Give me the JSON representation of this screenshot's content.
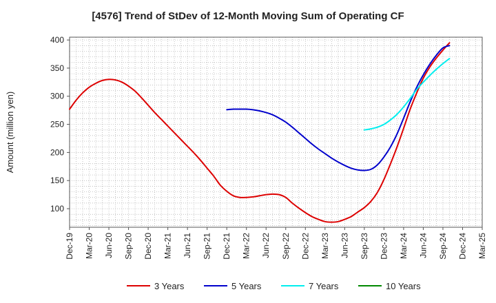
{
  "chart_data": {
    "type": "line",
    "title": "[4576]  Trend of StDev of 12-Month Moving Sum of Operating CF",
    "xlabel": "",
    "ylabel": "Amount (million yen)",
    "ylim": [
      67,
      405
    ],
    "xlim": [
      "2019-12",
      "2025-03"
    ],
    "yticks": [
      100,
      150,
      200,
      250,
      300,
      350,
      400
    ],
    "xticks": [
      "Dec-19",
      "Mar-20",
      "Jun-20",
      "Sep-20",
      "Dec-20",
      "Mar-21",
      "Jun-21",
      "Sep-21",
      "Dec-21",
      "Mar-22",
      "Jun-22",
      "Sep-22",
      "Dec-22",
      "Mar-23",
      "Jun-23",
      "Sep-23",
      "Dec-23",
      "Mar-24",
      "Jun-24",
      "Sep-24",
      "Dec-24",
      "Mar-25"
    ],
    "grid": true,
    "legend_position": "bottom",
    "series": [
      {
        "name": "3 Years",
        "color": "#dd0000",
        "points": [
          [
            "2019-12",
            277
          ],
          [
            "2020-01",
            293
          ],
          [
            "2020-02",
            306
          ],
          [
            "2020-03",
            316
          ],
          [
            "2020-04",
            323
          ],
          [
            "2020-05",
            328
          ],
          [
            "2020-06",
            330
          ],
          [
            "2020-07",
            329
          ],
          [
            "2020-08",
            325
          ],
          [
            "2020-09",
            318
          ],
          [
            "2020-10",
            309
          ],
          [
            "2020-11",
            297
          ],
          [
            "2020-12",
            284
          ],
          [
            "2021-01",
            271
          ],
          [
            "2021-02",
            259
          ],
          [
            "2021-03",
            247
          ],
          [
            "2021-04",
            235
          ],
          [
            "2021-05",
            223
          ],
          [
            "2021-06",
            211
          ],
          [
            "2021-07",
            199
          ],
          [
            "2021-08",
            186
          ],
          [
            "2021-09",
            172
          ],
          [
            "2021-10",
            158
          ],
          [
            "2021-11",
            142
          ],
          [
            "2021-12",
            131
          ],
          [
            "2022-01",
            123
          ],
          [
            "2022-02",
            120
          ],
          [
            "2022-03",
            120
          ],
          [
            "2022-04",
            121
          ],
          [
            "2022-05",
            123
          ],
          [
            "2022-06",
            125
          ],
          [
            "2022-07",
            126
          ],
          [
            "2022-08",
            125
          ],
          [
            "2022-09",
            120
          ],
          [
            "2022-10",
            110
          ],
          [
            "2022-11",
            101
          ],
          [
            "2022-12",
            93
          ],
          [
            "2023-01",
            86
          ],
          [
            "2023-02",
            81
          ],
          [
            "2023-03",
            77
          ],
          [
            "2023-04",
            76
          ],
          [
            "2023-05",
            77
          ],
          [
            "2023-06",
            81
          ],
          [
            "2023-07",
            86
          ],
          [
            "2023-08",
            94
          ],
          [
            "2023-09",
            102
          ],
          [
            "2023-10",
            113
          ],
          [
            "2023-11",
            129
          ],
          [
            "2023-12",
            152
          ],
          [
            "2024-01",
            180
          ],
          [
            "2024-02",
            210
          ],
          [
            "2024-03",
            243
          ],
          [
            "2024-04",
            277
          ],
          [
            "2024-05",
            306
          ],
          [
            "2024-06",
            332
          ],
          [
            "2024-07",
            352
          ],
          [
            "2024-08",
            368
          ],
          [
            "2024-09",
            382
          ],
          [
            "2024-10",
            395
          ]
        ]
      },
      {
        "name": "5 Years",
        "color": "#0000cc",
        "points": [
          [
            "2021-12",
            276
          ],
          [
            "2022-01",
            277
          ],
          [
            "2022-02",
            277
          ],
          [
            "2022-03",
            277
          ],
          [
            "2022-04",
            276
          ],
          [
            "2022-05",
            274
          ],
          [
            "2022-06",
            271
          ],
          [
            "2022-07",
            267
          ],
          [
            "2022-08",
            261
          ],
          [
            "2022-09",
            254
          ],
          [
            "2022-10",
            245
          ],
          [
            "2022-11",
            235
          ],
          [
            "2022-12",
            225
          ],
          [
            "2023-01",
            215
          ],
          [
            "2023-02",
            206
          ],
          [
            "2023-03",
            198
          ],
          [
            "2023-04",
            190
          ],
          [
            "2023-05",
            183
          ],
          [
            "2023-06",
            177
          ],
          [
            "2023-07",
            172
          ],
          [
            "2023-08",
            169
          ],
          [
            "2023-09",
            168
          ],
          [
            "2023-10",
            170
          ],
          [
            "2023-11",
            178
          ],
          [
            "2023-12",
            192
          ],
          [
            "2024-01",
            210
          ],
          [
            "2024-02",
            233
          ],
          [
            "2024-03",
            261
          ],
          [
            "2024-04",
            290
          ],
          [
            "2024-05",
            316
          ],
          [
            "2024-06",
            338
          ],
          [
            "2024-07",
            357
          ],
          [
            "2024-08",
            373
          ],
          [
            "2024-09",
            386
          ],
          [
            "2024-10",
            390
          ]
        ]
      },
      {
        "name": "7 Years",
        "color": "#00eeee",
        "points": [
          [
            "2023-09",
            240
          ],
          [
            "2023-10",
            242
          ],
          [
            "2023-11",
            245
          ],
          [
            "2023-12",
            250
          ],
          [
            "2024-01",
            258
          ],
          [
            "2024-02",
            268
          ],
          [
            "2024-03",
            281
          ],
          [
            "2024-04",
            296
          ],
          [
            "2024-05",
            312
          ],
          [
            "2024-06",
            325
          ],
          [
            "2024-07",
            337
          ],
          [
            "2024-08",
            348
          ],
          [
            "2024-09",
            358
          ],
          [
            "2024-10",
            367
          ]
        ]
      },
      {
        "name": "10 Years",
        "color": "#008800",
        "points": []
      }
    ]
  }
}
